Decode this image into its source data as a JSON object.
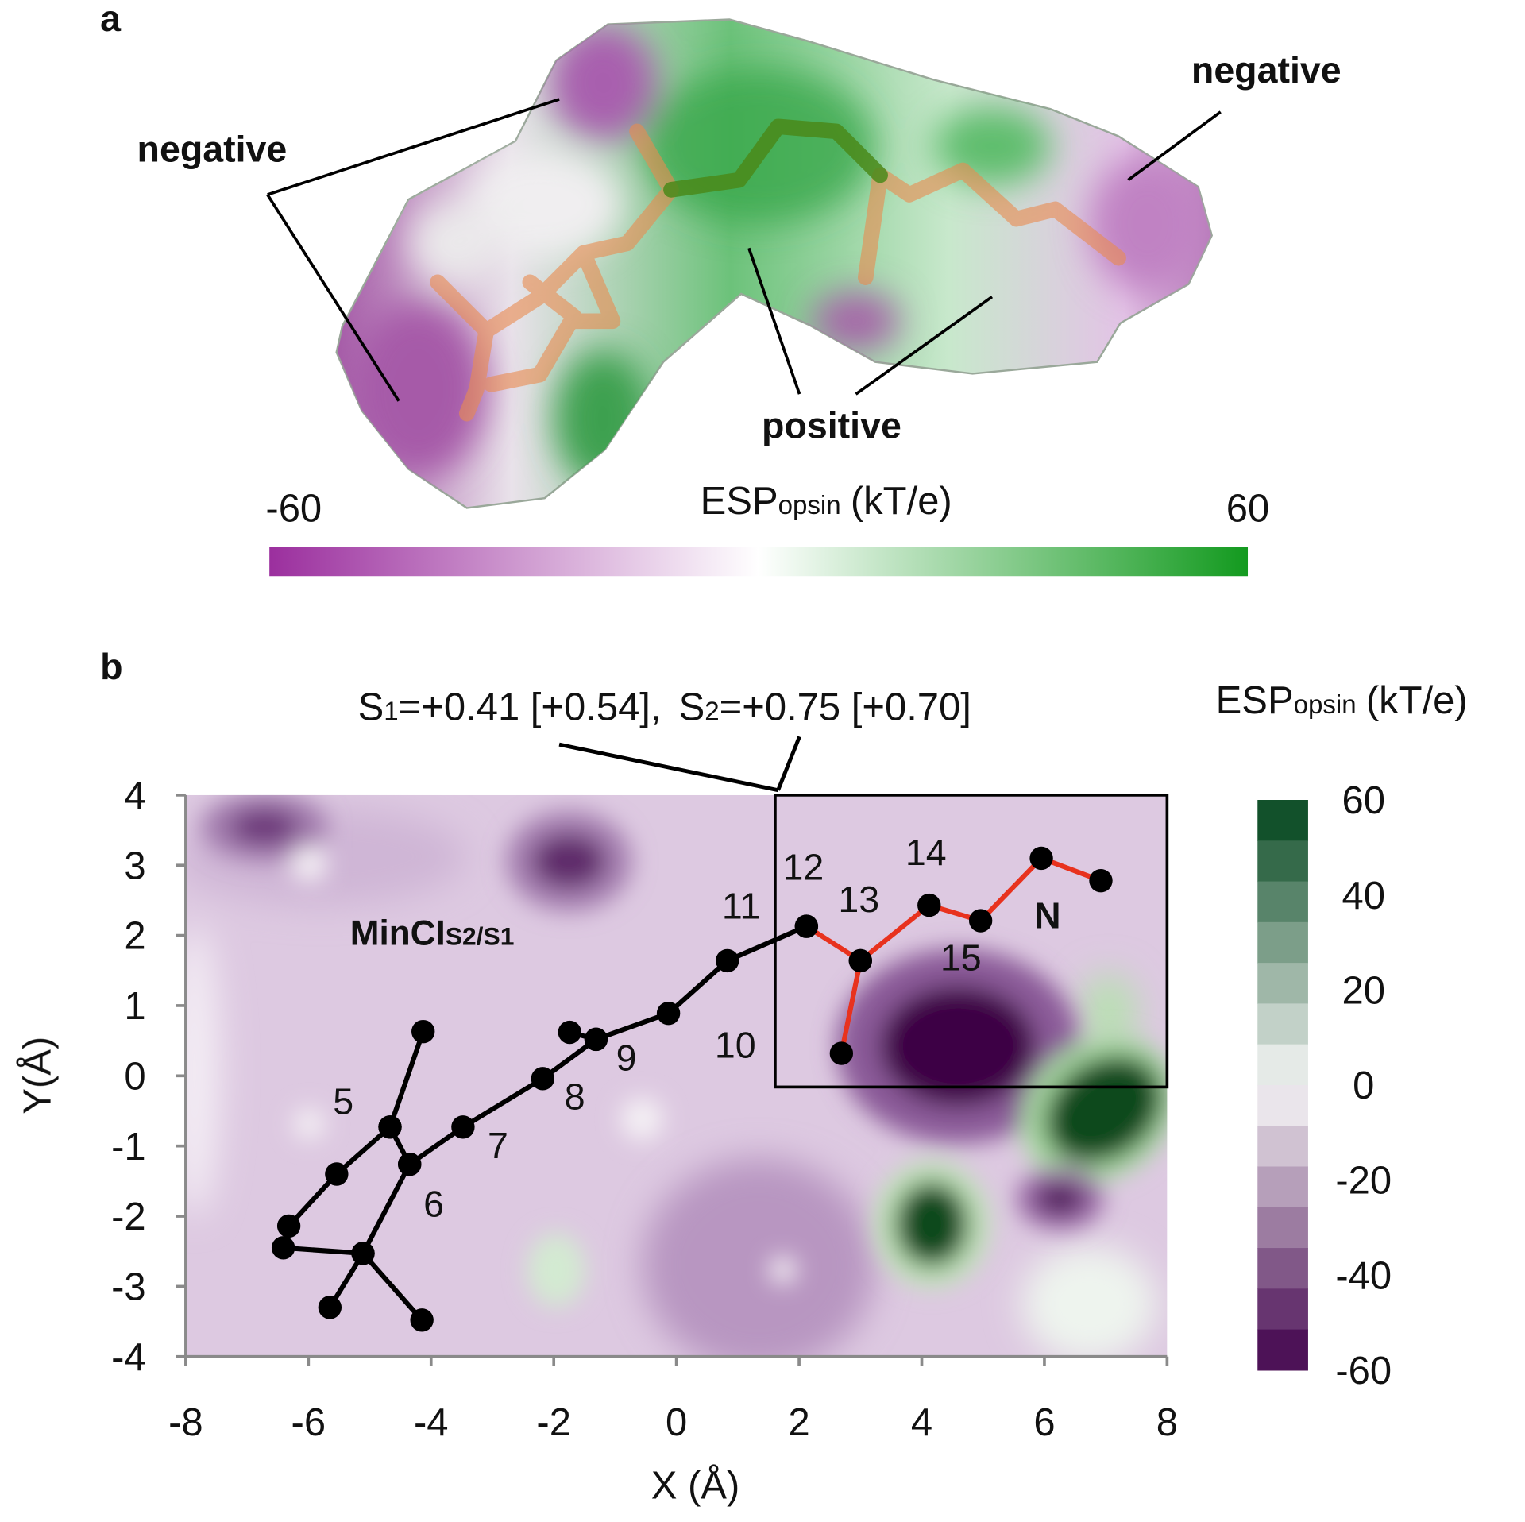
{
  "panel_a": {
    "label": "a",
    "annotations": [
      "negative",
      "negative",
      "positive"
    ],
    "colorbar": {
      "title": "ESP",
      "title_sub": "opsin",
      "title_unit": "(kT/e)",
      "lim": [
        -60,
        60
      ],
      "ticks": [
        -60,
        60
      ],
      "colors": [
        "#9b2f9e",
        "#ffffff",
        "#139a1f"
      ]
    }
  },
  "chart_data": {
    "type": "scatter",
    "panel_label": "b",
    "xlabel": "X (Å)",
    "ylabel": "Y(Å)",
    "xlim": [
      -8,
      8
    ],
    "xticks": [
      -8,
      -6,
      -4,
      -2,
      0,
      2,
      4,
      6,
      8
    ],
    "ylim": [
      -4,
      4
    ],
    "yticks": [
      -4,
      -3,
      -2,
      -1,
      0,
      1,
      2,
      3,
      4
    ],
    "series": [
      {
        "color": "#000000",
        "x": [
          -4.13,
          -4.67,
          -5.54,
          -6.32,
          -6.41,
          -5.11,
          -4.15,
          null,
          -5.65,
          -5.11,
          -4.35,
          -3.48,
          -2.18,
          -1.31,
          -0.13,
          0.83,
          2.12,
          null,
          -4.67,
          -4.35,
          null,
          -1.74,
          -1.31
        ],
        "values": [
          0.63,
          -0.73,
          -1.4,
          -2.14,
          -2.45,
          -2.53,
          -3.48,
          null,
          -3.3,
          -2.53,
          -1.26,
          -0.73,
          -0.04,
          0.52,
          0.89,
          1.64,
          2.13,
          null,
          -0.73,
          -1.26,
          null,
          0.62,
          0.52
        ]
      },
      {
        "color": "#e8321e",
        "x": [
          2.12,
          3.0,
          2.69,
          null,
          3.0,
          4.12,
          4.96,
          5.95,
          6.92
        ],
        "values": [
          2.13,
          1.64,
          0.32,
          null,
          1.64,
          2.43,
          2.21,
          3.1,
          2.78
        ]
      }
    ],
    "atom_labels": [
      "5",
      "6",
      "7",
      "8",
      "9",
      "10",
      "11",
      "12",
      "13",
      "14",
      "15",
      "N"
    ],
    "annotation": {
      "main": "MinCI",
      "sub": "S2/S1"
    },
    "box_label": [
      "S",
      "1",
      "=+0.41 [+0.54],",
      "S",
      "2",
      "=+0.75 [+0.70]"
    ],
    "colorbar": {
      "title": "ESP",
      "title_sub": "opsin",
      "title_unit": "(kT/e)",
      "lim": [
        -60,
        60
      ],
      "ticks": [
        60,
        40,
        20,
        0,
        -20,
        -40,
        -60
      ],
      "colors": [
        "#40004b",
        "#f7f7f7",
        "#00441b"
      ]
    }
  }
}
